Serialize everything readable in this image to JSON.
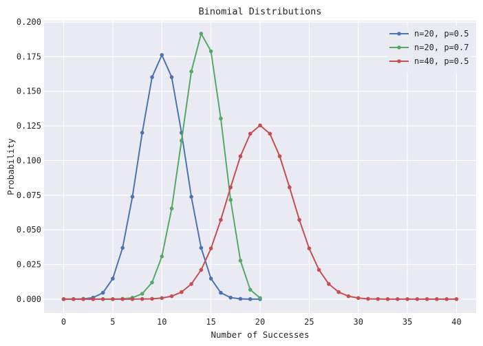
{
  "chart_data": {
    "type": "line",
    "title": "Binomial Distributions",
    "xlabel": "Number of Successes",
    "ylabel": "Probability",
    "xlim": [
      -2,
      42
    ],
    "ylim": [
      -0.01,
      0.201
    ],
    "xticks": [
      0,
      5,
      10,
      15,
      20,
      25,
      30,
      35,
      40
    ],
    "yticks": [
      0.0,
      0.025,
      0.05,
      0.075,
      0.1,
      0.125,
      0.15,
      0.175,
      0.2
    ],
    "ytick_labels": [
      "0.000",
      "0.025",
      "0.050",
      "0.075",
      "0.100",
      "0.125",
      "0.150",
      "0.175",
      "0.200"
    ],
    "grid": true,
    "legend_position": "top-right",
    "series": [
      {
        "name": "n=20, p=0.5",
        "color": "#4c72b0",
        "x": [
          0,
          1,
          2,
          3,
          4,
          5,
          6,
          7,
          8,
          9,
          10,
          11,
          12,
          13,
          14,
          15,
          16,
          17,
          18,
          19,
          20
        ],
        "y": [
          0.0,
          0.0,
          0.0002,
          0.0011,
          0.0046,
          0.0148,
          0.037,
          0.0739,
          0.1201,
          0.1602,
          0.1762,
          0.1602,
          0.1201,
          0.0739,
          0.037,
          0.0148,
          0.0046,
          0.0011,
          0.0002,
          0.0,
          0.0
        ]
      },
      {
        "name": "n=20, p=0.7",
        "color": "#55a868",
        "x": [
          0,
          1,
          2,
          3,
          4,
          5,
          6,
          7,
          8,
          9,
          10,
          11,
          12,
          13,
          14,
          15,
          16,
          17,
          18,
          19,
          20
        ],
        "y": [
          0.0,
          0.0,
          0.0,
          0.0,
          0.0,
          0.0,
          0.0002,
          0.001,
          0.0039,
          0.012,
          0.0308,
          0.0654,
          0.1144,
          0.1643,
          0.1916,
          0.1789,
          0.1304,
          0.0716,
          0.0278,
          0.0068,
          0.0008
        ]
      },
      {
        "name": "n=40, p=0.5",
        "color": "#c44e52",
        "x": [
          0,
          1,
          2,
          3,
          4,
          5,
          6,
          7,
          8,
          9,
          10,
          11,
          12,
          13,
          14,
          15,
          16,
          17,
          18,
          19,
          20,
          21,
          22,
          23,
          24,
          25,
          26,
          27,
          28,
          29,
          30,
          31,
          32,
          33,
          34,
          35,
          36,
          37,
          38,
          39,
          40
        ],
        "y": [
          0.0,
          0.0,
          0.0,
          0.0,
          0.0,
          0.0,
          0.0,
          0.0,
          0.0001,
          0.0002,
          0.0008,
          0.0021,
          0.0051,
          0.0109,
          0.0211,
          0.0366,
          0.0572,
          0.0807,
          0.1031,
          0.1194,
          0.1254,
          0.1194,
          0.1031,
          0.0807,
          0.0572,
          0.0366,
          0.0211,
          0.0109,
          0.0051,
          0.0021,
          0.0008,
          0.0002,
          0.0001,
          0.0,
          0.0,
          0.0,
          0.0,
          0.0,
          0.0,
          0.0,
          0.0
        ]
      }
    ]
  }
}
